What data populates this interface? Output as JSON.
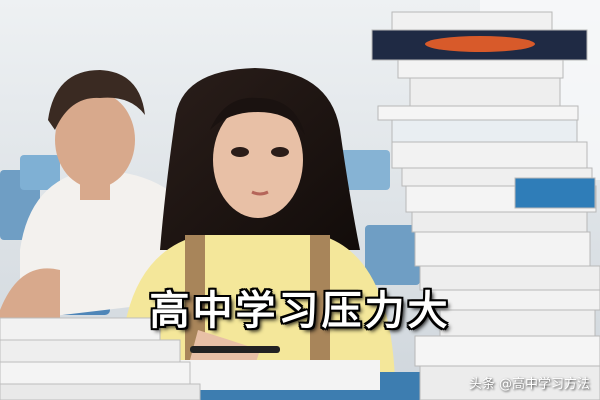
{
  "photo": {
    "caption": "高中学习压力大",
    "watermark": "头条 @高中学习方法"
  }
}
